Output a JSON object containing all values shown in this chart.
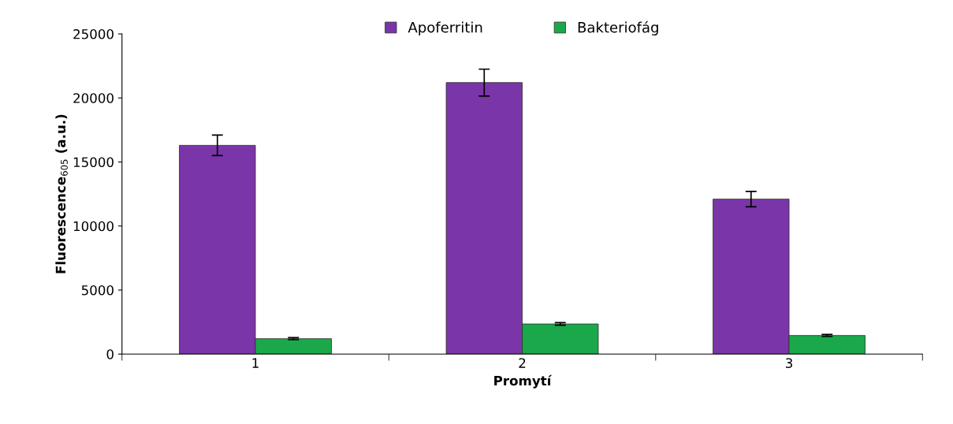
{
  "chart_data": {
    "type": "bar",
    "xlabel": "Promytí",
    "ylabel": "Fluorescence$_{605}$ (a.u.)",
    "categories": [
      "1",
      "2",
      "3"
    ],
    "series": [
      {
        "name": "Apoferritin",
        "color": "#7a35a8",
        "values": [
          16300,
          21200,
          12100
        ],
        "errors": [
          800,
          1050,
          600
        ]
      },
      {
        "name": "Bakteriofág",
        "color": "#1aa84a",
        "values": [
          1200,
          2350,
          1450
        ],
        "errors": [
          80,
          100,
          80
        ]
      }
    ],
    "ylim": [
      0,
      25000
    ],
    "yticks": [
      0,
      5000,
      10000,
      15000,
      20000,
      25000
    ],
    "grid": false,
    "legend": "top"
  }
}
